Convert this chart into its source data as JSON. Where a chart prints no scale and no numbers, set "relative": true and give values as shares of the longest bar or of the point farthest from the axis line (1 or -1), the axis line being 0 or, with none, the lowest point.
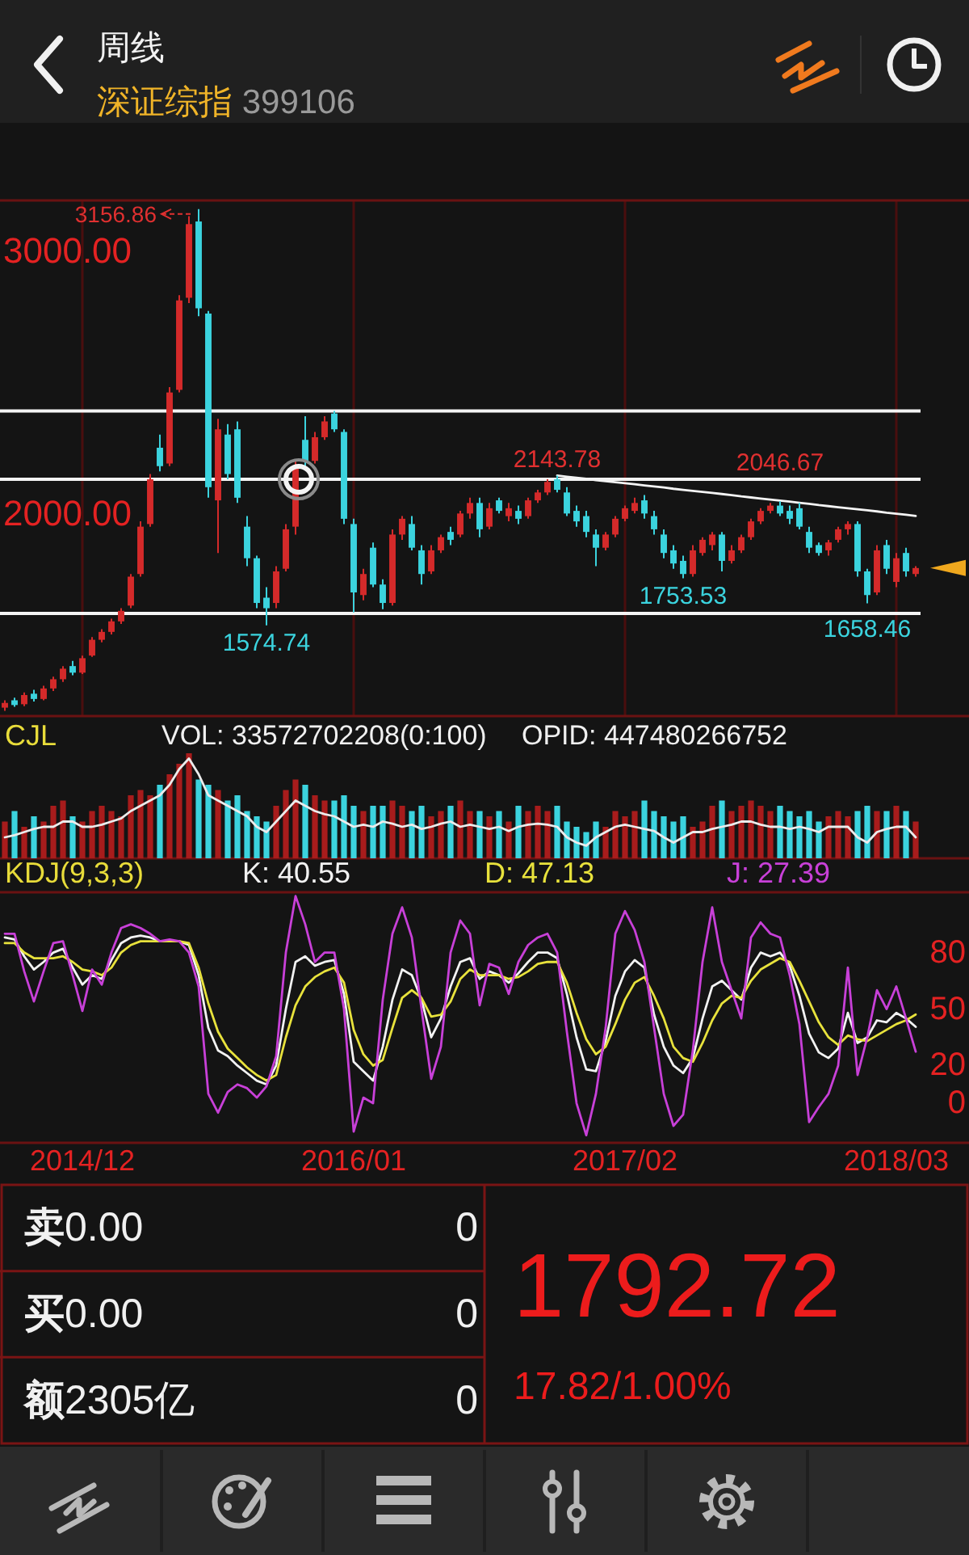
{
  "chart_data": [
    {
      "type": "candlestick",
      "title": "周线",
      "subtitle": "深证综指 399106",
      "categories": [
        null,
        null,
        null,
        null,
        null,
        null,
        null,
        null,
        "2014/12",
        null,
        null,
        null,
        null,
        null,
        null,
        null,
        null,
        null,
        null,
        null,
        null,
        null,
        null,
        null,
        null,
        null,
        null,
        null,
        null,
        null,
        null,
        null,
        null,
        null,
        null,
        null,
        "2016/01",
        null,
        null,
        null,
        null,
        null,
        null,
        null,
        null,
        null,
        null,
        null,
        null,
        null,
        null,
        null,
        null,
        null,
        null,
        null,
        null,
        null,
        null,
        null,
        null,
        null,
        null,
        null,
        "2017/02",
        null,
        null,
        null,
        null,
        null,
        null,
        null,
        null,
        null,
        null,
        null,
        null,
        null,
        null,
        null,
        null,
        null,
        null,
        null,
        null,
        null,
        null,
        null,
        null,
        null,
        null,
        null,
        "2018/03",
        null,
        null
      ],
      "ohlc": [
        [
          1262,
          1290,
          1250,
          1280
        ],
        [
          1290,
          1300,
          1265,
          1272
        ],
        [
          1275,
          1320,
          1268,
          1310
        ],
        [
          1315,
          1330,
          1285,
          1295
        ],
        [
          1295,
          1345,
          1290,
          1335
        ],
        [
          1335,
          1380,
          1325,
          1370
        ],
        [
          1370,
          1420,
          1360,
          1410
        ],
        [
          1420,
          1440,
          1385,
          1395
        ],
        [
          1395,
          1460,
          1390,
          1450
        ],
        [
          1460,
          1530,
          1455,
          1520
        ],
        [
          1520,
          1560,
          1510,
          1550
        ],
        [
          1550,
          1600,
          1540,
          1590
        ],
        [
          1590,
          1640,
          1580,
          1630
        ],
        [
          1650,
          1770,
          1640,
          1760
        ],
        [
          1770,
          1970,
          1760,
          1950
        ],
        [
          1960,
          2150,
          1950,
          2130
        ],
        [
          2250,
          2300,
          2160,
          2180
        ],
        [
          2190,
          2480,
          2180,
          2460
        ],
        [
          2470,
          2830,
          2460,
          2810
        ],
        [
          2820,
          3130,
          2800,
          3100
        ],
        [
          3110,
          3156.86,
          2750,
          2780
        ],
        [
          2760,
          2770,
          2060,
          2100
        ],
        [
          2050,
          2360,
          1850,
          2320
        ],
        [
          2300,
          2340,
          2130,
          2150
        ],
        [
          2320,
          2350,
          2040,
          2060
        ],
        [
          1950,
          1990,
          1800,
          1830
        ],
        [
          1830,
          1840,
          1640,
          1660
        ],
        [
          1680,
          1720,
          1574.74,
          1640
        ],
        [
          1660,
          1800,
          1640,
          1780
        ],
        [
          1790,
          1960,
          1780,
          1940
        ],
        [
          1950,
          2200,
          1920,
          2180
        ],
        [
          2280,
          2370,
          2180,
          2200
        ],
        [
          2200,
          2310,
          2190,
          2290
        ],
        [
          2290,
          2370,
          2280,
          2350
        ],
        [
          2380,
          2390,
          2310,
          2320
        ],
        [
          2310,
          2320,
          1960,
          1980
        ],
        [
          1960,
          1980,
          1624,
          1700
        ],
        [
          1690,
          1790,
          1670,
          1770
        ],
        [
          1870,
          1890,
          1720,
          1730
        ],
        [
          1730,
          1750,
          1636,
          1660
        ],
        [
          1660,
          1940,
          1650,
          1920
        ],
        [
          1920,
          1990,
          1900,
          1980
        ],
        [
          1960,
          1990,
          1860,
          1870
        ],
        [
          1860,
          1880,
          1730,
          1770
        ],
        [
          1780,
          1880,
          1770,
          1860
        ],
        [
          1860,
          1920,
          1850,
          1910
        ],
        [
          1930,
          1950,
          1880,
          1900
        ],
        [
          1920,
          2010,
          1910,
          2000
        ],
        [
          2000,
          2060,
          1980,
          2040
        ],
        [
          2040,
          2060,
          1910,
          1940
        ],
        [
          1950,
          2040,
          1940,
          2020
        ],
        [
          2050,
          2060,
          2000,
          2010
        ],
        [
          1990,
          2040,
          1970,
          2020
        ],
        [
          2010,
          2030,
          1960,
          1980
        ],
        [
          1990,
          2060,
          1980,
          2050
        ],
        [
          2050,
          2090,
          2040,
          2080
        ],
        [
          2080,
          2130,
          2070,
          2120
        ],
        [
          2130,
          2143.78,
          2080,
          2090
        ],
        [
          2080,
          2100,
          1990,
          2000
        ],
        [
          2010,
          2030,
          1950,
          1970
        ],
        [
          1990,
          2010,
          1910,
          1930
        ],
        [
          1920,
          1940,
          1800,
          1870
        ],
        [
          1870,
          1930,
          1860,
          1920
        ],
        [
          1920,
          1990,
          1910,
          1980
        ],
        [
          1980,
          2030,
          1970,
          2020
        ],
        [
          2010,
          2060,
          2000,
          2040
        ],
        [
          2050,
          2070,
          1980,
          2000
        ],
        [
          1990,
          2010,
          1920,
          1940
        ],
        [
          1920,
          1940,
          1830,
          1850
        ],
        [
          1860,
          1880,
          1790,
          1810
        ],
        [
          1820,
          1840,
          1753.53,
          1770
        ],
        [
          1770,
          1880,
          1760,
          1860
        ],
        [
          1850,
          1910,
          1840,
          1900
        ],
        [
          1880,
          1930,
          1860,
          1920
        ],
        [
          1920,
          1930,
          1780,
          1820
        ],
        [
          1820,
          1880,
          1810,
          1860
        ],
        [
          1860,
          1920,
          1850,
          1910
        ],
        [
          1910,
          1980,
          1900,
          1970
        ],
        [
          1970,
          2020,
          1960,
          2010
        ],
        [
          2010,
          2040,
          2000,
          2030
        ],
        [
          2030,
          2046.67,
          1990,
          2000
        ],
        [
          2010,
          2030,
          1960,
          1980
        ],
        [
          2020,
          2040,
          1940,
          1950
        ],
        [
          1930,
          1950,
          1850,
          1870
        ],
        [
          1880,
          1890,
          1840,
          1850
        ],
        [
          1860,
          1900,
          1840,
          1890
        ],
        [
          1900,
          1950,
          1890,
          1940
        ],
        [
          1940,
          1970,
          1920,
          1960
        ],
        [
          1960,
          1970,
          1760,
          1780
        ],
        [
          1780,
          1790,
          1658.46,
          1690
        ],
        [
          1700,
          1880,
          1690,
          1860
        ],
        [
          1880,
          1900,
          1770,
          1790
        ],
        [
          1740,
          1850,
          1720,
          1830
        ],
        [
          1850,
          1870,
          1760,
          1780
        ],
        [
          1770,
          1800,
          1760,
          1792.72
        ]
      ],
      "colors": [
        "#d42a2a",
        "#3bd3de",
        "#d42a2a",
        "#3bd3de",
        "#d42a2a",
        "#d42a2a",
        "#d42a2a",
        "#3bd3de",
        "#d42a2a",
        "#d42a2a",
        "#d42a2a",
        "#d42a2a",
        "#d42a2a",
        "#d42a2a",
        "#d42a2a",
        "#d42a2a",
        "#3bd3de",
        "#d42a2a",
        "#d42a2a",
        "#d42a2a",
        "#3bd3de",
        "#3bd3de",
        "#d42a2a",
        "#3bd3de",
        "#3bd3de",
        "#3bd3de",
        "#3bd3de",
        "#3bd3de",
        "#d42a2a",
        "#d42a2a",
        "#d42a2a",
        "#3bd3de",
        "#d42a2a",
        "#d42a2a",
        "#3bd3de",
        "#3bd3de",
        "#3bd3de",
        "#d42a2a",
        "#3bd3de",
        "#3bd3de",
        "#d42a2a",
        "#d42a2a",
        "#3bd3de",
        "#3bd3de",
        "#d42a2a",
        "#d42a2a",
        "#3bd3de",
        "#d42a2a",
        "#d42a2a",
        "#3bd3de",
        "#d42a2a",
        "#3bd3de",
        "#d42a2a",
        "#3bd3de",
        "#d42a2a",
        "#d42a2a",
        "#d42a2a",
        "#3bd3de",
        "#3bd3de",
        "#3bd3de",
        "#3bd3de",
        "#3bd3de",
        "#d42a2a",
        "#d42a2a",
        "#d42a2a",
        "#d42a2a",
        "#3bd3de",
        "#3bd3de",
        "#3bd3de",
        "#3bd3de",
        "#3bd3de",
        "#d42a2a",
        "#d42a2a",
        "#d42a2a",
        "#3bd3de",
        "#d42a2a",
        "#d42a2a",
        "#d42a2a",
        "#d42a2a",
        "#d42a2a",
        "#3bd3de",
        "#3bd3de",
        "#3bd3de",
        "#3bd3de",
        "#3bd3de",
        "#d42a2a",
        "#d42a2a",
        "#d42a2a",
        "#3bd3de",
        "#3bd3de",
        "#d42a2a",
        "#3bd3de",
        "#d42a2a",
        "#3bd3de",
        "#d42a2a"
      ],
      "value_labels": [
        null,
        null,
        null,
        null,
        null,
        null,
        null,
        null,
        null,
        null,
        null,
        null,
        null,
        null,
        null,
        null,
        null,
        null,
        null,
        null,
        "3156.86",
        null,
        null,
        null,
        null,
        null,
        null,
        "1574.74",
        null,
        null,
        null,
        null,
        null,
        null,
        null,
        null,
        null,
        null,
        null,
        null,
        null,
        null,
        null,
        null,
        null,
        null,
        null,
        null,
        null,
        null,
        null,
        null,
        null,
        null,
        null,
        null,
        null,
        "2143.78",
        null,
        null,
        null,
        null,
        null,
        null,
        null,
        null,
        null,
        null,
        null,
        null,
        "1753.53",
        null,
        null,
        null,
        null,
        null,
        null,
        null,
        null,
        null,
        "2046.67",
        null,
        null,
        null,
        null,
        null,
        null,
        null,
        null,
        "1658.46",
        null,
        null,
        null,
        null,
        null
      ],
      "ylim": [
        1230,
        3190
      ],
      "yticks": [
        {
          "value": 3000,
          "label": "3000.00"
        },
        {
          "value": 2000,
          "label": "2000.00"
        }
      ],
      "tick_labels": "y",
      "grid": "x",
      "ref_lines": [
        {
          "axis": "y",
          "value": 2390,
          "color": "#f4f4f4"
        },
        {
          "axis": "y",
          "value": 2130,
          "color": "#f4f4f4"
        },
        {
          "axis": "y",
          "value": 1620,
          "color": "#f4f4f4"
        }
      ],
      "series": [
        {
          "type": "line",
          "color": "#f4f4f4",
          "values": [
            null,
            null,
            null,
            null,
            null,
            null,
            null,
            null,
            null,
            null,
            null,
            null,
            null,
            null,
            null,
            null,
            null,
            null,
            null,
            null,
            null,
            null,
            null,
            null,
            null,
            null,
            null,
            null,
            null,
            null,
            null,
            null,
            null,
            null,
            null,
            null,
            null,
            null,
            null,
            null,
            null,
            null,
            null,
            null,
            null,
            null,
            null,
            null,
            null,
            null,
            null,
            null,
            null,
            null,
            null,
            null,
            null,
            2144,
            2140,
            2136,
            2132,
            2127,
            2123,
            2119,
            2115,
            2111,
            2107,
            2103,
            2099,
            2094,
            2090,
            2086,
            2082,
            2078,
            2074,
            2070,
            2065,
            2061,
            2057,
            2053,
            2049,
            2045,
            2041,
            2037,
            2032,
            2028,
            2024,
            2020,
            2016,
            2012,
            2008,
            2003,
            1999,
            1995,
            1991
          ]
        }
      ]
    },
    {
      "type": "bar",
      "title": "CJL",
      "annotations": [
        "VOL: 33572702208(0:100)",
        "OPID: 447480266752"
      ],
      "categories": [
        null,
        null,
        null,
        null,
        null,
        null,
        null,
        null,
        null,
        null,
        null,
        null,
        null,
        null,
        null,
        null,
        null,
        null,
        null,
        null,
        null,
        null,
        null,
        null,
        null,
        null,
        null,
        null,
        null,
        null,
        null,
        null,
        null,
        null,
        null,
        null,
        null,
        null,
        null,
        null,
        null,
        null,
        null,
        null,
        null,
        null,
        null,
        null,
        null,
        null,
        null,
        null,
        null,
        null,
        null,
        null,
        null,
        null,
        null,
        null,
        null,
        null,
        null,
        null,
        null,
        null,
        null,
        null,
        null,
        null,
        null,
        null,
        null,
        null,
        null,
        null,
        null,
        null,
        null,
        null,
        null,
        null,
        null,
        null,
        null,
        null,
        null,
        null,
        null,
        null,
        null,
        null,
        null,
        null,
        null
      ],
      "relative": true,
      "tick_labels": false,
      "series": [
        {
          "type": "bar",
          "colors": [
            "#a81c1c",
            "#3bd3de",
            "#a81c1c",
            "#3bd3de",
            "#a81c1c",
            "#a81c1c",
            "#a81c1c",
            "#3bd3de",
            "#a81c1c",
            "#a81c1c",
            "#a81c1c",
            "#a81c1c",
            "#a81c1c",
            "#a81c1c",
            "#a81c1c",
            "#a81c1c",
            "#3bd3de",
            "#a81c1c",
            "#a81c1c",
            "#a81c1c",
            "#3bd3de",
            "#3bd3de",
            "#a81c1c",
            "#3bd3de",
            "#3bd3de",
            "#3bd3de",
            "#3bd3de",
            "#3bd3de",
            "#a81c1c",
            "#a81c1c",
            "#a81c1c",
            "#3bd3de",
            "#a81c1c",
            "#a81c1c",
            "#3bd3de",
            "#3bd3de",
            "#3bd3de",
            "#a81c1c",
            "#3bd3de",
            "#3bd3de",
            "#a81c1c",
            "#a81c1c",
            "#3bd3de",
            "#3bd3de",
            "#a81c1c",
            "#a81c1c",
            "#3bd3de",
            "#a81c1c",
            "#a81c1c",
            "#3bd3de",
            "#a81c1c",
            "#3bd3de",
            "#a81c1c",
            "#3bd3de",
            "#a81c1c",
            "#a81c1c",
            "#a81c1c",
            "#3bd3de",
            "#3bd3de",
            "#3bd3de",
            "#3bd3de",
            "#3bd3de",
            "#a81c1c",
            "#a81c1c",
            "#a81c1c",
            "#a81c1c",
            "#3bd3de",
            "#3bd3de",
            "#3bd3de",
            "#3bd3de",
            "#3bd3de",
            "#a81c1c",
            "#a81c1c",
            "#a81c1c",
            "#3bd3de",
            "#a81c1c",
            "#a81c1c",
            "#a81c1c",
            "#a81c1c",
            "#a81c1c",
            "#3bd3de",
            "#3bd3de",
            "#3bd3de",
            "#3bd3de",
            "#3bd3de",
            "#a81c1c",
            "#a81c1c",
            "#a81c1c",
            "#3bd3de",
            "#3bd3de",
            "#a81c1c",
            "#3bd3de",
            "#a81c1c",
            "#3bd3de",
            "#a81c1c"
          ],
          "values": [
            0.35,
            0.45,
            0.3,
            0.4,
            0.35,
            0.5,
            0.55,
            0.4,
            0.35,
            0.45,
            0.5,
            0.45,
            0.4,
            0.6,
            0.65,
            0.6,
            0.7,
            0.8,
            0.9,
            1,
            0.75,
            0.7,
            0.65,
            0.55,
            0.6,
            0.45,
            0.4,
            0.35,
            0.5,
            0.65,
            0.75,
            0.7,
            0.6,
            0.55,
            0.55,
            0.6,
            0.5,
            0.45,
            0.5,
            0.5,
            0.55,
            0.5,
            0.45,
            0.5,
            0.4,
            0.45,
            0.5,
            0.55,
            0.45,
            0.45,
            0.4,
            0.45,
            0.35,
            0.5,
            0.45,
            0.5,
            0.45,
            0.5,
            0.35,
            0.3,
            0.25,
            0.35,
            0.3,
            0.45,
            0.4,
            0.45,
            0.55,
            0.45,
            0.4,
            0.35,
            0.4,
            0.3,
            0.35,
            0.5,
            0.55,
            0.45,
            0.5,
            0.55,
            0.5,
            0.45,
            0.5,
            0.45,
            0.4,
            0.45,
            0.35,
            0.4,
            0.45,
            0.4,
            0.45,
            0.5,
            0.45,
            0.45,
            0.5,
            0.45,
            0.35
          ]
        },
        {
          "type": "line",
          "color": "#ececec",
          "values": [
            0.2,
            0.22,
            0.25,
            0.28,
            0.3,
            0.3,
            0.35,
            0.35,
            0.3,
            0.3,
            0.32,
            0.35,
            0.38,
            0.45,
            0.5,
            0.55,
            0.6,
            0.7,
            0.85,
            0.95,
            0.8,
            0.6,
            0.55,
            0.5,
            0.45,
            0.4,
            0.3,
            0.25,
            0.35,
            0.45,
            0.55,
            0.5,
            0.45,
            0.42,
            0.4,
            0.35,
            0.3,
            0.32,
            0.3,
            0.35,
            0.33,
            0.3,
            0.32,
            0.28,
            0.3,
            0.33,
            0.35,
            0.3,
            0.32,
            0.3,
            0.28,
            0.3,
            0.26,
            0.3,
            0.32,
            0.33,
            0.32,
            0.3,
            0.2,
            0.15,
            0.12,
            0.2,
            0.25,
            0.3,
            0.32,
            0.3,
            0.28,
            0.26,
            0.2,
            0.15,
            0.2,
            0.25,
            0.25,
            0.28,
            0.3,
            0.32,
            0.35,
            0.35,
            0.32,
            0.3,
            0.3,
            0.28,
            0.3,
            0.28,
            0.25,
            0.3,
            0.3,
            0.3,
            0.2,
            0.15,
            0.25,
            0.28,
            0.3,
            0.3,
            0.2
          ]
        }
      ]
    },
    {
      "type": "line",
      "title": "KDJ(9,3,3)",
      "legend": "top",
      "categories": [
        null,
        null,
        null,
        null,
        null,
        null,
        null,
        null,
        "2014/12",
        null,
        null,
        null,
        null,
        null,
        null,
        null,
        null,
        null,
        null,
        null,
        null,
        null,
        null,
        null,
        null,
        null,
        null,
        null,
        null,
        null,
        null,
        null,
        null,
        null,
        null,
        null,
        "2016/01",
        null,
        null,
        null,
        null,
        null,
        null,
        null,
        null,
        null,
        null,
        null,
        null,
        null,
        null,
        null,
        null,
        null,
        null,
        null,
        null,
        null,
        null,
        null,
        null,
        null,
        null,
        null,
        "2017/02",
        null,
        null,
        null,
        null,
        null,
        null,
        null,
        null,
        null,
        null,
        null,
        null,
        null,
        null,
        null,
        null,
        null,
        null,
        null,
        null,
        null,
        null,
        null,
        null,
        null,
        null,
        null,
        "2018/03",
        null,
        null
      ],
      "ylim": [
        -21,
        112
      ],
      "yticks": [
        80,
        50,
        20,
        0
      ],
      "series": [
        {
          "name": "K: 40.55",
          "color": "#f2f2f2",
          "values": [
            88,
            87,
            78,
            71,
            75,
            80,
            82,
            72,
            63,
            68,
            66,
            76,
            85,
            88,
            89,
            88,
            86,
            86,
            86,
            84,
            68,
            40,
            28,
            25,
            20,
            16,
            12,
            10,
            20,
            50,
            75,
            78,
            73,
            75,
            76,
            58,
            22,
            17,
            12,
            30,
            55,
            71,
            68,
            55,
            35,
            45,
            62,
            75,
            77,
            66,
            70,
            68,
            64,
            69,
            75,
            80,
            80,
            77,
            58,
            35,
            18,
            17,
            33,
            57,
            70,
            76,
            72,
            47,
            30,
            20,
            16,
            24,
            45,
            62,
            65,
            60,
            55,
            72,
            80,
            78,
            80,
            73,
            57,
            37,
            27,
            24,
            29,
            48,
            32,
            35,
            44,
            43,
            48,
            45,
            40.55
          ]
        },
        {
          "name": "D: 47.13",
          "color": "#e8e23c",
          "values": [
            85,
            85,
            80,
            77,
            77,
            77,
            78,
            75,
            71,
            70,
            68,
            72,
            80,
            84,
            86,
            86,
            86,
            86,
            86,
            85,
            72,
            53,
            38,
            29,
            24,
            19,
            15,
            12,
            15,
            35,
            52,
            62,
            67,
            70,
            72,
            64,
            39,
            26,
            20,
            23,
            40,
            56,
            60,
            56,
            46,
            47,
            54,
            66,
            71,
            68,
            68,
            68,
            66,
            67,
            70,
            74,
            75,
            75,
            64,
            48,
            34,
            26,
            30,
            42,
            55,
            64,
            67,
            57,
            45,
            30,
            24,
            22,
            32,
            44,
            53,
            57,
            56,
            65,
            71,
            74,
            77,
            75,
            65,
            54,
            43,
            35,
            31,
            36,
            34,
            33,
            36,
            39,
            42,
            44,
            47.13
          ]
        },
        {
          "name": "J: 27.39",
          "color": "#c840d8",
          "values": [
            90,
            90,
            70,
            54,
            70,
            85,
            86,
            68,
            49,
            71,
            63,
            80,
            93,
            95,
            93,
            90,
            86,
            87,
            86,
            80,
            62,
            5,
            -5,
            6,
            10,
            8,
            3,
            9,
            25,
            80,
            110,
            95,
            75,
            80,
            80,
            50,
            -15,
            3,
            0,
            55,
            90,
            104,
            88,
            50,
            13,
            30,
            80,
            97,
            90,
            52,
            74,
            72,
            58,
            75,
            84,
            88,
            90,
            80,
            38,
            0,
            -17,
            5,
            40,
            90,
            102,
            92,
            75,
            40,
            5,
            -12,
            -6,
            28,
            75,
            104,
            75,
            60,
            45,
            88,
            96,
            90,
            88,
            68,
            42,
            -10,
            -2,
            5,
            20,
            72,
            15,
            35,
            60,
            50,
            62,
            45,
            27.39
          ]
        }
      ]
    },
    {
      "type": "other",
      "annotations": [
        "卖0.00",
        "0",
        "买0.00",
        "0",
        "额2305亿",
        "0",
        "1792.72",
        "17.82/1.00%"
      ]
    }
  ]
}
